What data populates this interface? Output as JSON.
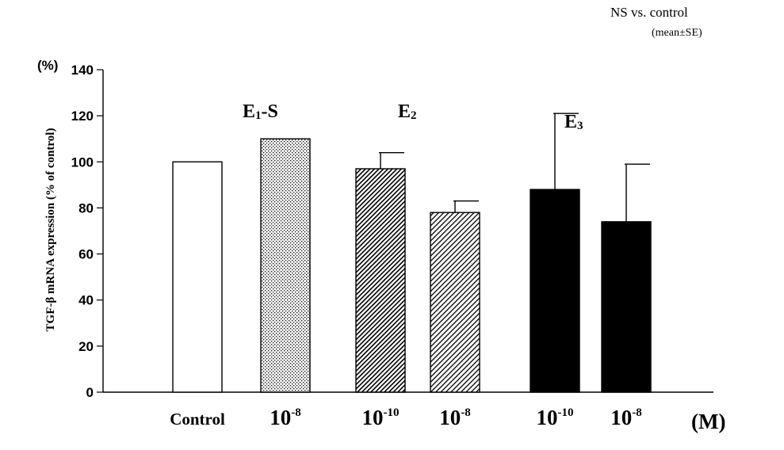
{
  "chart_data": {
    "type": "bar",
    "ylabel": "TGF-β mRNA expression (% of control)",
    "yunit": "(%)",
    "xunit": "(M)",
    "ylim": [
      0,
      140
    ],
    "yticks": [
      0,
      20,
      40,
      60,
      80,
      100,
      120,
      140
    ],
    "grid": false,
    "annotations": {
      "significance": "NS vs. control",
      "stat": "(mean±SE)"
    },
    "groups": [
      {
        "label": "",
        "sub": ""
      },
      {
        "label": "E",
        "sub": "1",
        "suffix": "-S"
      },
      {
        "label": "E",
        "sub": "2",
        "suffix": ""
      },
      {
        "label": "E",
        "sub": "3",
        "suffix": ""
      }
    ],
    "bars": [
      {
        "category": "Control",
        "value": 100,
        "error": 0,
        "fill": "white"
      },
      {
        "category": "10",
        "exp": "-8",
        "value": 110,
        "error": 0,
        "fill": "dots"
      },
      {
        "category": "10",
        "exp": "-10",
        "value": 97,
        "error": 7,
        "fill": "hatch-dense"
      },
      {
        "category": "10",
        "exp": "-8",
        "value": 78,
        "error": 5,
        "fill": "hatch"
      },
      {
        "category": "10",
        "exp": "-10",
        "value": 88,
        "error": 33,
        "fill": "black"
      },
      {
        "category": "10",
        "exp": "-8",
        "value": 74,
        "error": 25,
        "fill": "black"
      }
    ]
  }
}
